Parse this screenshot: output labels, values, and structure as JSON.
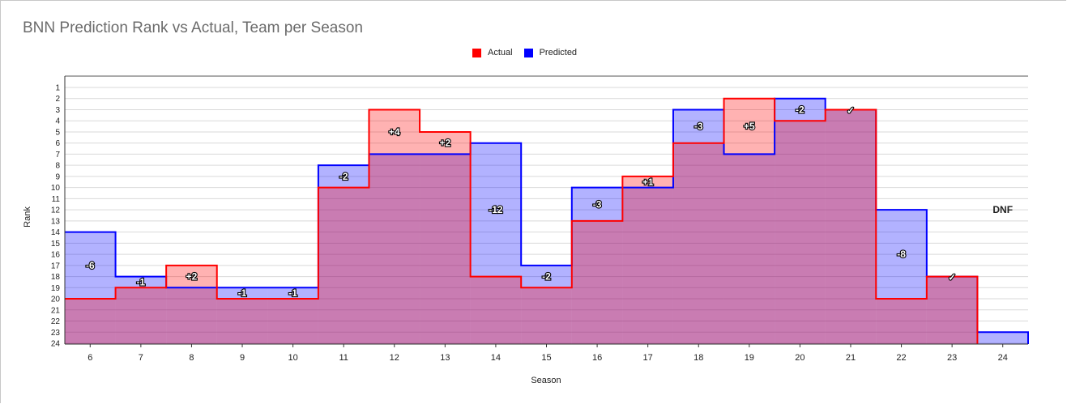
{
  "chart_data": {
    "type": "area",
    "step": true,
    "title": "BNN Prediction Rank vs Actual, Team per Season",
    "xlabel": "Season",
    "ylabel": "Rank",
    "ylim": [
      1,
      24
    ],
    "y_inverted": true,
    "grid": true,
    "legend_position": "top-center",
    "categories": [
      "6",
      "7",
      "8",
      "9",
      "10",
      "11",
      "12",
      "13",
      "14",
      "15",
      "16",
      "17",
      "18",
      "19",
      "20",
      "21",
      "22",
      "23",
      "24"
    ],
    "series": [
      {
        "name": "Actual",
        "color": "#ff0000",
        "values": [
          20,
          19,
          17,
          20,
          20,
          10,
          3,
          5,
          18,
          19,
          13,
          9,
          6,
          2,
          4,
          3,
          20,
          18,
          null
        ]
      },
      {
        "name": "Predicted",
        "color": "#0000ff",
        "values": [
          14,
          18,
          19,
          19,
          19,
          8,
          7,
          7,
          6,
          17,
          10,
          10,
          3,
          7,
          2,
          3,
          12,
          18,
          23
        ]
      }
    ],
    "y_ticks": [
      "1",
      "2",
      "3",
      "4",
      "5",
      "6",
      "7",
      "8",
      "9",
      "10",
      "11",
      "12",
      "13",
      "14",
      "15",
      "16",
      "17",
      "18",
      "19",
      "20",
      "21",
      "22",
      "23",
      "24"
    ],
    "annotations": [
      "-6",
      "-1",
      "+2",
      "-1",
      "-1",
      "-2",
      "+4",
      "+2",
      "-12",
      "-2",
      "-3",
      "+1",
      "-3",
      "+5",
      "-2",
      "✓",
      "-8",
      "✓",
      "DNF"
    ]
  }
}
